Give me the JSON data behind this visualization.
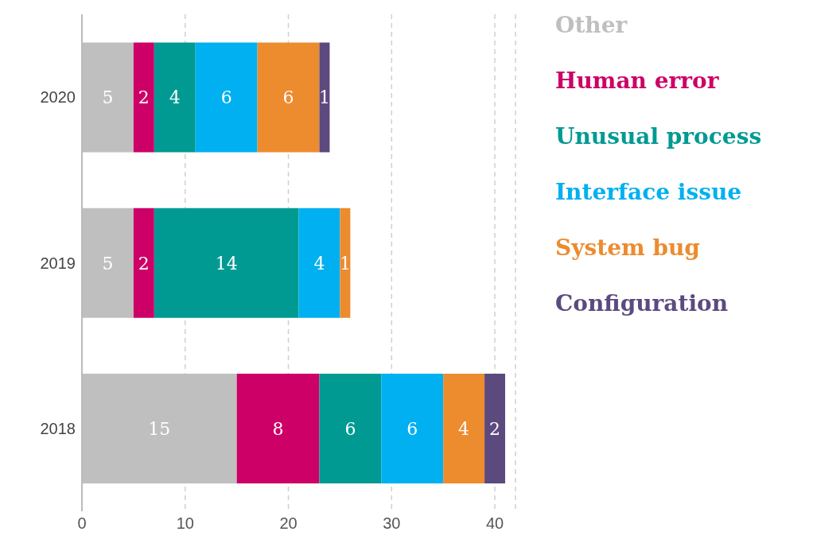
{
  "chart_data": {
    "type": "bar",
    "orientation": "horizontal",
    "stacked": true,
    "categories": [
      "2020",
      "2019",
      "2018"
    ],
    "series": [
      {
        "name": "Other",
        "color": "#bfbfbf",
        "values": [
          5,
          5,
          15
        ]
      },
      {
        "name": "Human error",
        "color": "#cc0066",
        "values": [
          2,
          2,
          8
        ]
      },
      {
        "name": "Unusual process",
        "color": "#009a93",
        "values": [
          4,
          14,
          6
        ]
      },
      {
        "name": "Interface issue",
        "color": "#00b0f0",
        "values": [
          6,
          4,
          6
        ]
      },
      {
        "name": "System bug",
        "color": "#ed8b2f",
        "values": [
          6,
          1,
          4
        ]
      },
      {
        "name": "Configuration",
        "color": "#5c4a7f",
        "values": [
          1,
          null,
          2
        ]
      }
    ],
    "xlim": [
      0,
      42
    ],
    "xticks": [
      0,
      10,
      20,
      30,
      40
    ],
    "grid": "x",
    "legend": "right",
    "data_labels": true
  }
}
